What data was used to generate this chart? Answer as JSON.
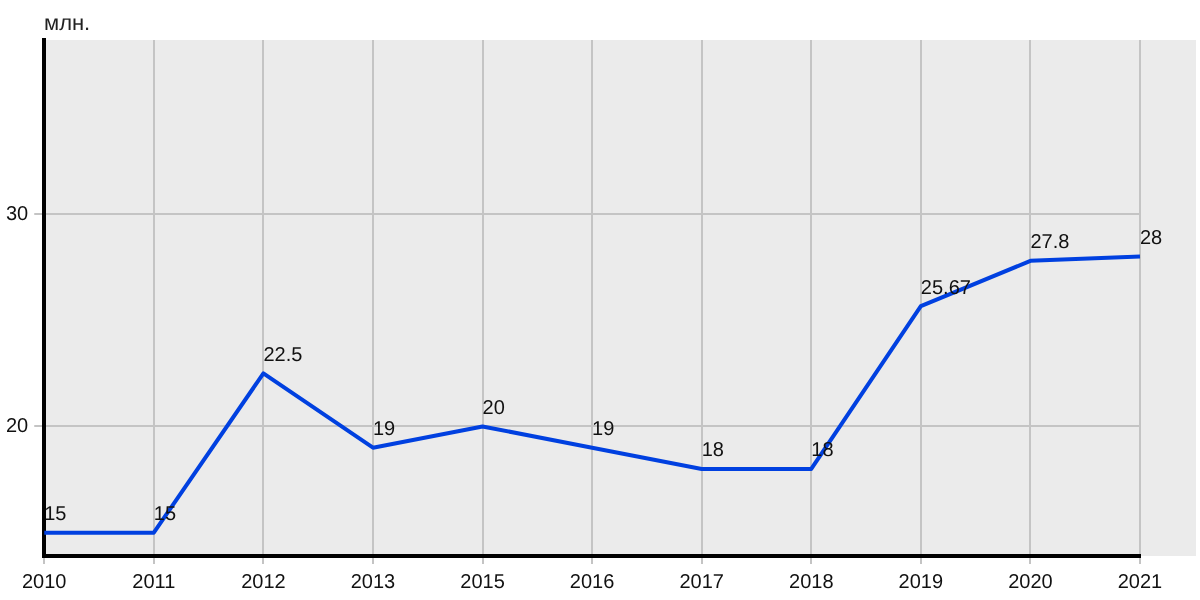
{
  "chart_data": {
    "type": "line",
    "ylabel": "млн.",
    "categories": [
      "2010",
      "2011",
      "2012",
      "2013",
      "2015",
      "2016",
      "2017",
      "2018",
      "2019",
      "2020",
      "2021"
    ],
    "series": [
      {
        "color": "#0040e0",
        "values": [
          15,
          15,
          22.5,
          19,
          20,
          19,
          18,
          18,
          25.67,
          27.8,
          28
        ]
      }
    ],
    "ylim": [
      13.9,
      38.2
    ],
    "yticks": [
      20,
      30
    ],
    "grid": true,
    "legend": false,
    "marker": "none",
    "line_style": "solid",
    "data_labels": true
  }
}
